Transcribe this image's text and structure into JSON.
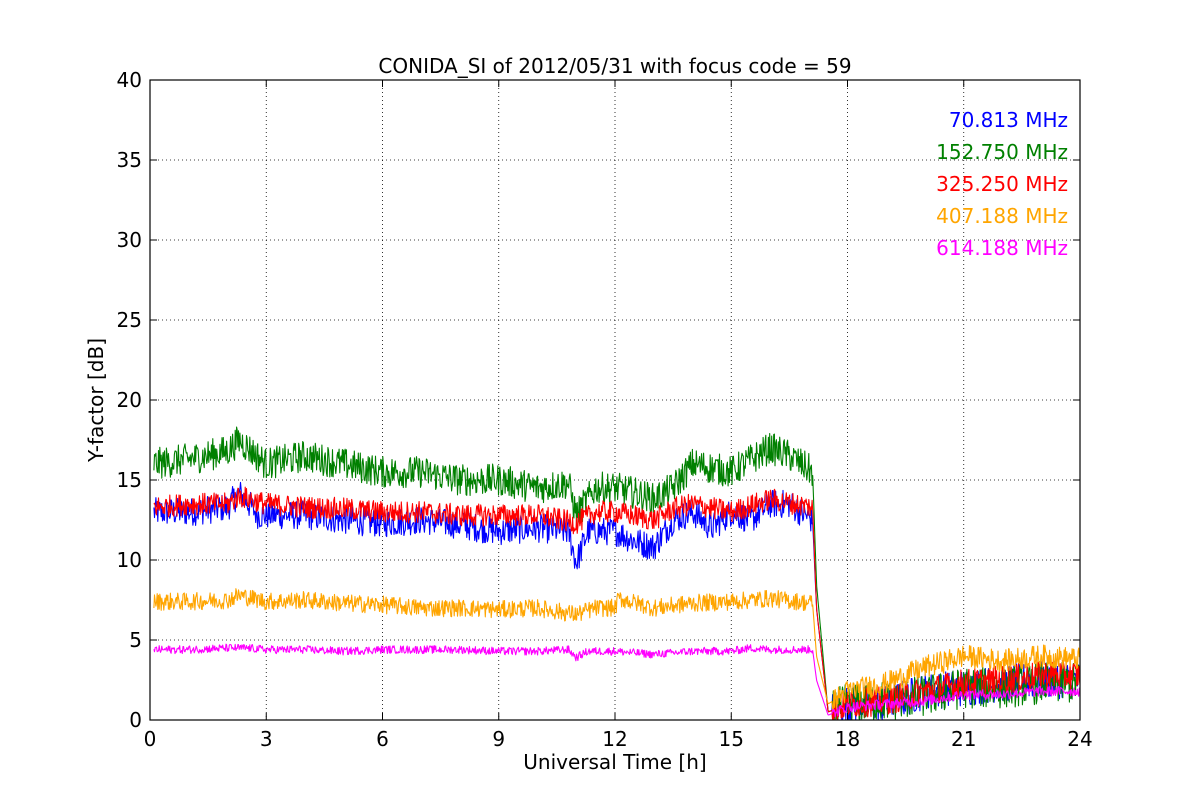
{
  "chart_data": {
    "type": "line",
    "title": "CONIDA_SI of 2012/05/31 with focus code = 59",
    "xlabel": "Universal Time [h]",
    "ylabel": "Y-factor [dB]",
    "xlim": [
      0,
      24
    ],
    "ylim": [
      0,
      40
    ],
    "xticks": [
      "0",
      "3",
      "6",
      "9",
      "12",
      "15",
      "18",
      "21",
      "24"
    ],
    "yticks": [
      "0",
      "5",
      "10",
      "15",
      "20",
      "25",
      "30",
      "35",
      "40"
    ],
    "grid": true,
    "legend_position": "top-right",
    "series": [
      {
        "name": "70.813 MHz",
        "color": "#0000ff",
        "x": [
          0.1,
          1,
          2,
          2.3,
          2.8,
          4,
          5,
          6,
          7,
          8,
          9,
          10,
          10.8,
          11.0,
          11.3,
          12,
          12.5,
          13.0,
          13.5,
          14,
          14.5,
          15,
          15.5,
          16,
          16.5,
          17.1,
          17.2,
          17.5,
          18,
          19,
          20,
          21,
          22,
          23,
          24
        ],
        "y": [
          13.0,
          13.0,
          13.3,
          14.2,
          12.8,
          12.8,
          12.5,
          12.3,
          12.5,
          12.2,
          11.8,
          12.0,
          11.8,
          9.8,
          11.8,
          11.8,
          11.2,
          10.8,
          12.5,
          13.0,
          12.0,
          13.0,
          12.5,
          13.5,
          13.5,
          12.5,
          7.0,
          0.5,
          1.0,
          1.0,
          1.8,
          2.0,
          2.3,
          2.5,
          2.5
        ]
      },
      {
        "name": "152.750 MHz",
        "color": "#008000",
        "x": [
          0.1,
          1,
          2,
          2.3,
          3,
          4,
          5,
          6,
          7,
          8,
          9,
          10,
          10.8,
          11.0,
          11.5,
          12,
          12.5,
          13.0,
          13.5,
          14,
          15,
          16,
          16.5,
          17.1,
          17.2,
          17.5,
          18,
          19,
          20,
          21,
          22,
          23,
          24
        ],
        "y": [
          16.0,
          16.3,
          16.8,
          17.5,
          16.0,
          16.5,
          16.0,
          15.5,
          15.5,
          15.0,
          15.0,
          14.5,
          14.8,
          12.8,
          14.5,
          14.5,
          14.2,
          13.8,
          14.5,
          16.0,
          15.5,
          17.0,
          16.5,
          15.5,
          8.5,
          0.5,
          1.0,
          1.2,
          1.5,
          2.0,
          2.0,
          2.3,
          2.3
        ]
      },
      {
        "name": "325.250 MHz",
        "color": "#ff0000",
        "x": [
          0.1,
          1,
          2,
          2.3,
          3,
          4,
          5,
          6,
          7,
          8,
          9,
          10,
          11.0,
          11.5,
          12,
          13.0,
          13.5,
          14,
          15,
          16,
          17.1,
          17.2,
          17.5,
          18,
          19,
          20,
          21,
          22,
          23,
          24
        ],
        "y": [
          13.3,
          13.5,
          13.5,
          14.0,
          13.5,
          13.3,
          13.2,
          13.0,
          13.0,
          12.8,
          12.8,
          12.8,
          12.3,
          13.0,
          13.0,
          12.5,
          13.2,
          13.5,
          13.0,
          13.8,
          13.3,
          7.0,
          0.5,
          1.0,
          1.2,
          1.8,
          2.3,
          2.5,
          2.8,
          2.8
        ]
      },
      {
        "name": "407.188 MHz",
        "color": "#ffa500",
        "x": [
          0.1,
          1,
          2,
          2.3,
          3,
          4,
          5,
          6,
          7,
          8,
          9,
          10,
          11.0,
          11.5,
          12,
          12.1,
          13.0,
          14,
          15,
          16,
          17.1,
          17.2,
          17.5,
          18,
          19,
          20,
          21,
          22,
          23,
          24
        ],
        "y": [
          7.4,
          7.4,
          7.5,
          7.8,
          7.4,
          7.5,
          7.3,
          7.2,
          7.0,
          7.0,
          6.9,
          7.0,
          6.6,
          7.0,
          7.0,
          7.6,
          7.0,
          7.3,
          7.4,
          7.6,
          7.3,
          4.0,
          1.0,
          1.8,
          2.3,
          3.3,
          4.0,
          3.7,
          4.0,
          3.8
        ]
      },
      {
        "name": "614.188 MHz",
        "color": "#ff00ff",
        "x": [
          0.1,
          1,
          2,
          2.5,
          3,
          4,
          5,
          6,
          7,
          8,
          9,
          10,
          10.8,
          11.0,
          11.3,
          12,
          13,
          13.5,
          14,
          15,
          15.5,
          16,
          17.1,
          17.2,
          17.5,
          18,
          19,
          20,
          21,
          22,
          23,
          24
        ],
        "y": [
          4.4,
          4.4,
          4.5,
          4.5,
          4.4,
          4.4,
          4.3,
          4.4,
          4.4,
          4.4,
          4.3,
          4.3,
          4.4,
          3.9,
          4.3,
          4.3,
          4.1,
          4.2,
          4.3,
          4.3,
          4.5,
          4.4,
          4.4,
          2.5,
          0.3,
          0.8,
          1.0,
          1.2,
          1.6,
          1.6,
          1.8,
          1.8
        ]
      }
    ]
  }
}
